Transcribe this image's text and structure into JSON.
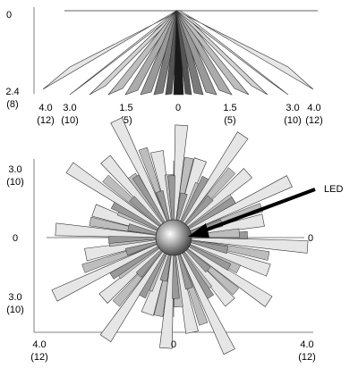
{
  "side_view": {
    "y_axis": {
      "top_label": "0",
      "bottom_label": "2.4",
      "bottom_sublabel": "(8)"
    },
    "x_ticks": [
      {
        "value": "4.0",
        "sub": "(12)"
      },
      {
        "value": "3.0",
        "sub": "(10)"
      },
      {
        "value": "1.5",
        "sub": "(5)"
      },
      {
        "value": "0",
        "sub": ""
      },
      {
        "value": "1.5",
        "sub": "(5)"
      },
      {
        "value": "3.0",
        "sub": "(10)"
      },
      {
        "value": "4.0",
        "sub": "(12)"
      }
    ]
  },
  "top_view": {
    "y_labels": {
      "top_value": "3.0",
      "top_sub": "(10)",
      "mid_left": "0",
      "mid_right": "0",
      "bottom_value": "3.0",
      "bottom_sub": "(10)"
    },
    "x_labels": {
      "left_value": "4.0",
      "left_sub": "(12)",
      "center": "0",
      "right_value": "4.0",
      "right_sub": "(12)"
    },
    "callout": "LED"
  },
  "colors": {
    "beam_light": "#e6e6e6",
    "beam_mid": "#999999",
    "beam_dark": "#1a1a1a",
    "axis": "#808080"
  }
}
